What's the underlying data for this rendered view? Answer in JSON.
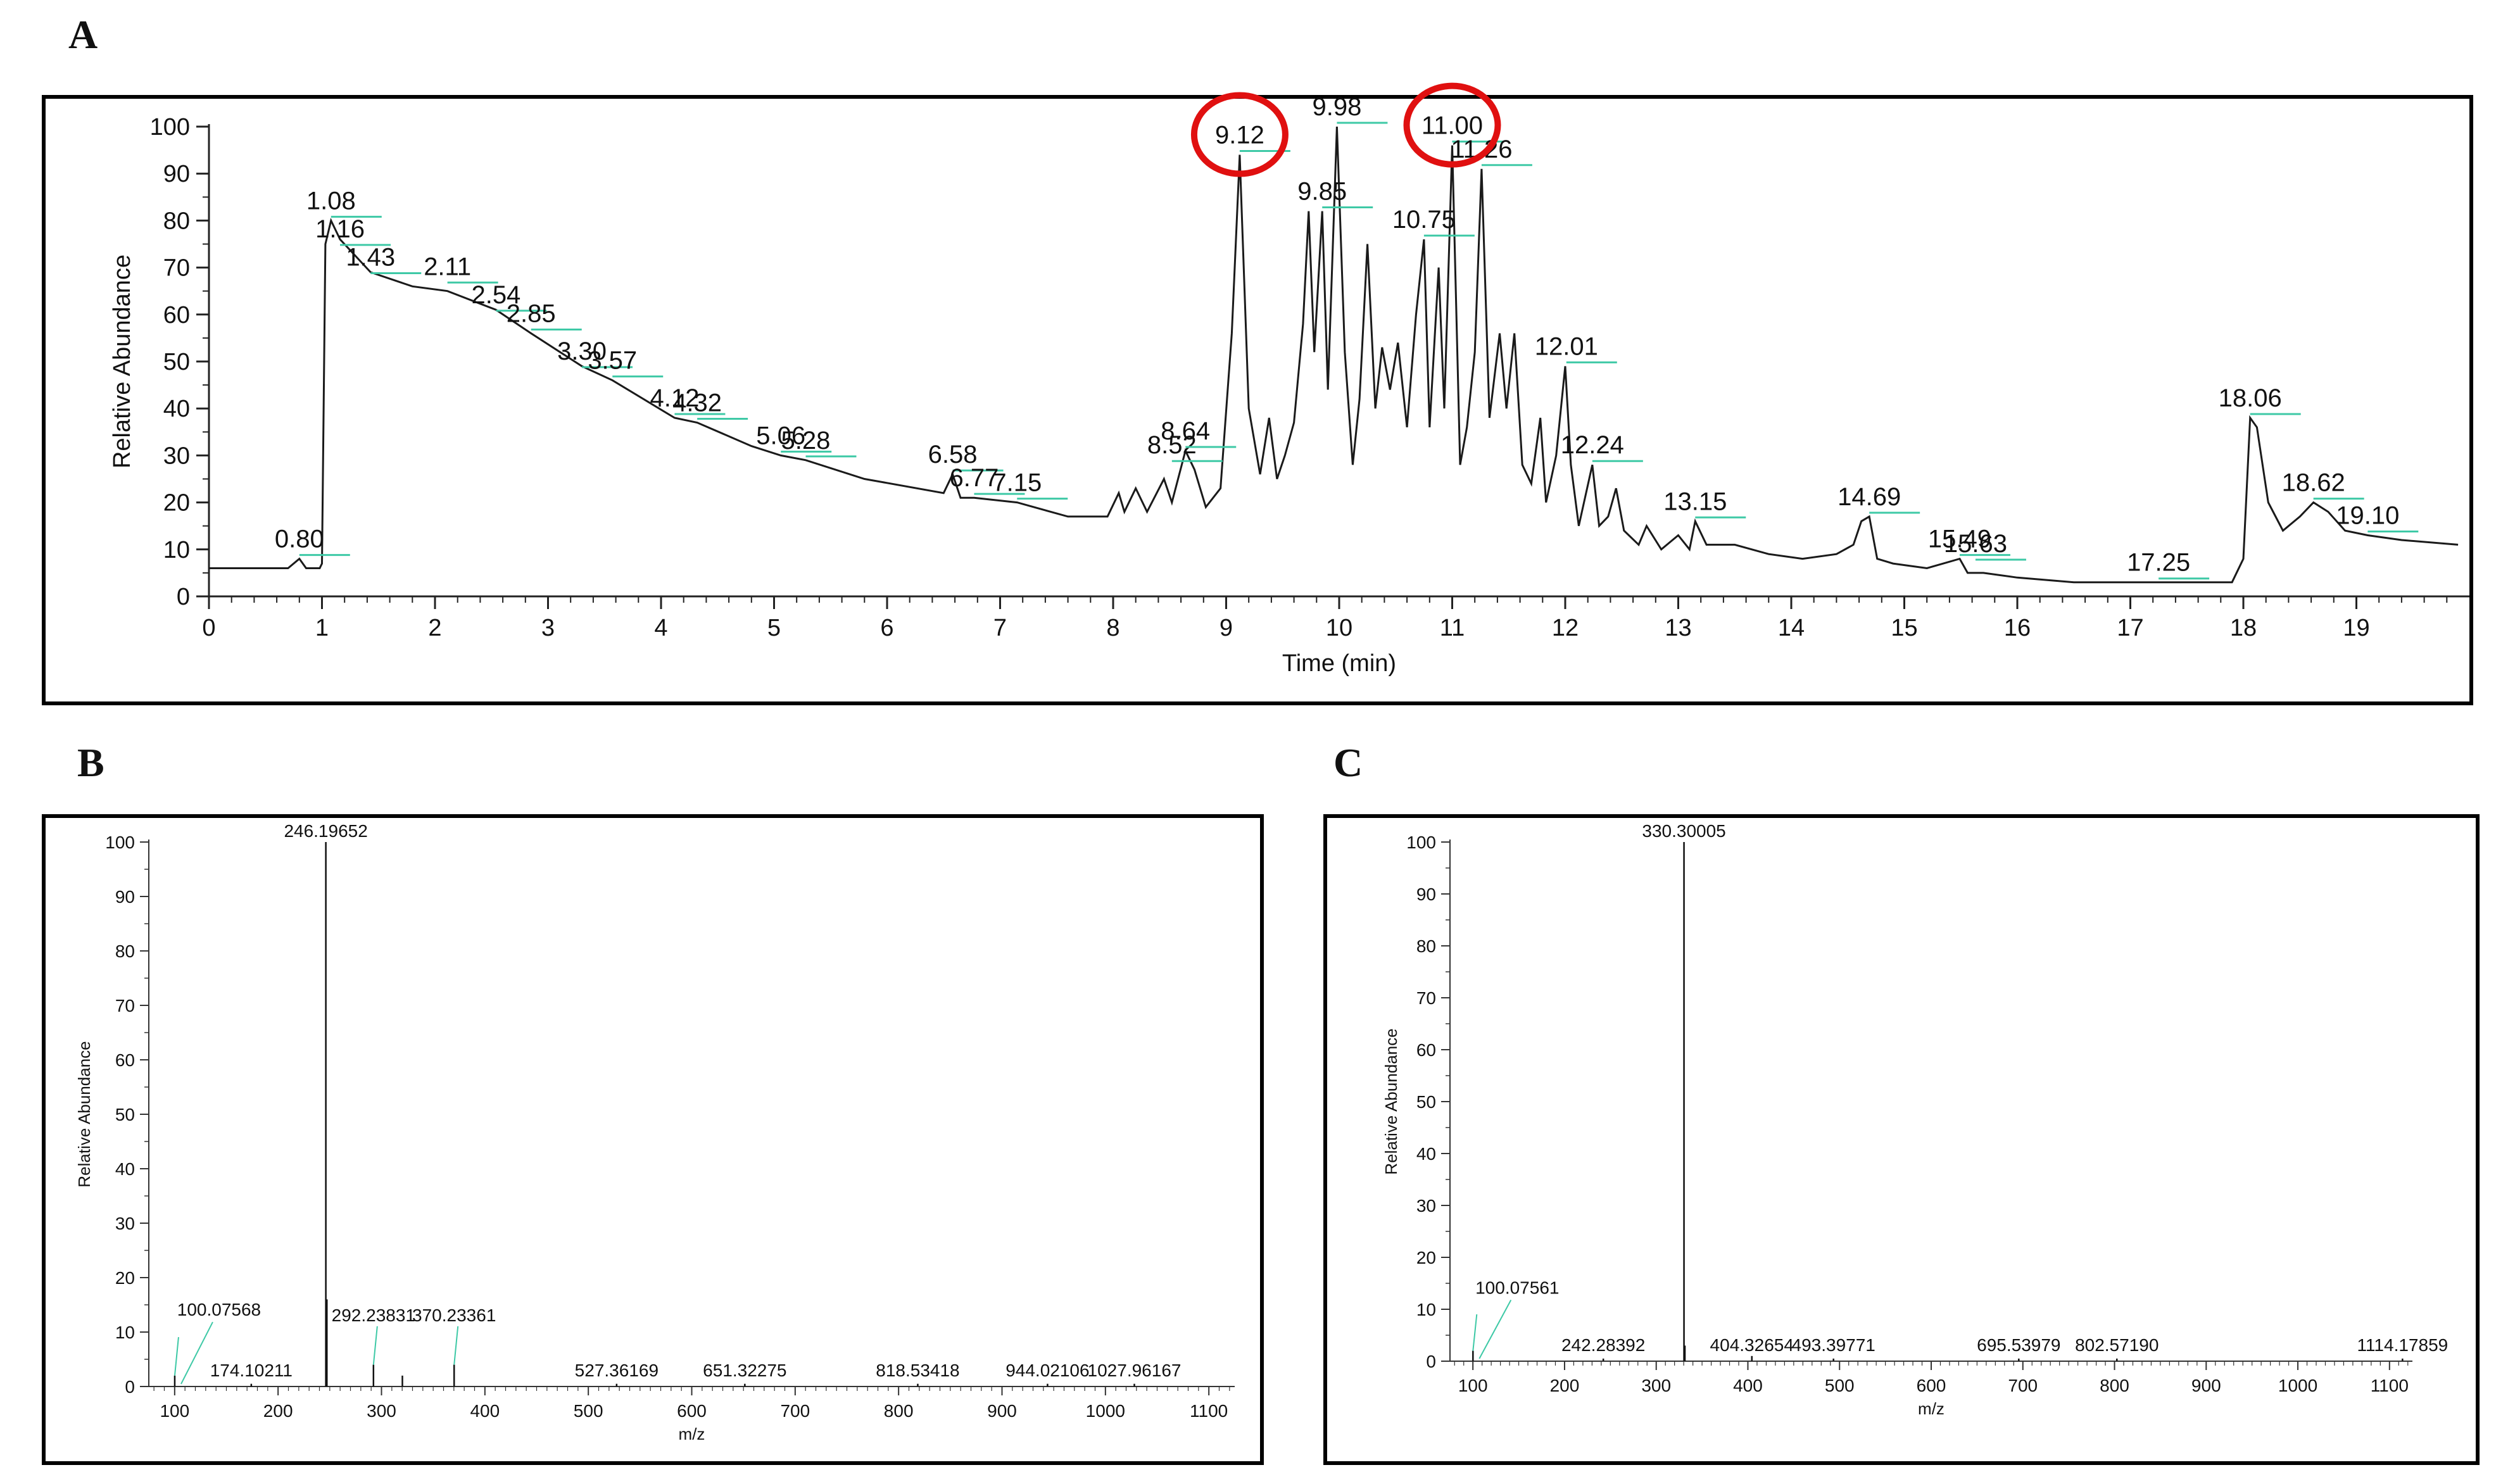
{
  "panels": {
    "a": "A",
    "b": "B",
    "c": "C"
  },
  "chart_data": [
    {
      "type": "line",
      "xlabel": "Time (min)",
      "ylabel": "Relative Abundance",
      "xlim": [
        0,
        20
      ],
      "ylim": [
        0,
        100
      ],
      "xticks": [
        0,
        1,
        2,
        3,
        4,
        5,
        6,
        7,
        8,
        9,
        10,
        11,
        12,
        13,
        14,
        15,
        16,
        17,
        18,
        19
      ],
      "yticks": [
        0,
        10,
        20,
        30,
        40,
        50,
        60,
        70,
        80,
        90,
        100
      ],
      "grid": false,
      "highlighted_peaks": [
        "9.12",
        "11.00"
      ],
      "highlight_color": "#e01010",
      "trace_color": "#1a1a1a",
      "label_line_color": "#3ec9a6",
      "peak_labels": [
        {
          "label": "0.80",
          "x": 0.8,
          "y": 8
        },
        {
          "label": "1.08",
          "x": 1.08,
          "y": 80
        },
        {
          "label": "1.16",
          "x": 1.16,
          "y": 74
        },
        {
          "label": "1.43",
          "x": 1.43,
          "y": 68
        },
        {
          "label": "2.11",
          "x": 2.11,
          "y": 66
        },
        {
          "label": "2.54",
          "x": 2.54,
          "y": 60
        },
        {
          "label": "2.85",
          "x": 2.85,
          "y": 56
        },
        {
          "label": "3.30",
          "x": 3.3,
          "y": 48
        },
        {
          "label": "3.57",
          "x": 3.57,
          "y": 46
        },
        {
          "label": "4.12",
          "x": 4.12,
          "y": 38
        },
        {
          "label": "4.32",
          "x": 4.32,
          "y": 37
        },
        {
          "label": "5.06",
          "x": 5.06,
          "y": 30
        },
        {
          "label": "5.28",
          "x": 5.28,
          "y": 29
        },
        {
          "label": "6.58",
          "x": 6.58,
          "y": 26
        },
        {
          "label": "6.77",
          "x": 6.77,
          "y": 21
        },
        {
          "label": "7.15",
          "x": 7.15,
          "y": 20
        },
        {
          "label": "8.52",
          "x": 8.52,
          "y": 28
        },
        {
          "label": "8.64",
          "x": 8.64,
          "y": 31
        },
        {
          "label": "9.12",
          "x": 9.12,
          "y": 94
        },
        {
          "label": "9.85",
          "x": 9.85,
          "y": 82
        },
        {
          "label": "9.98",
          "x": 9.98,
          "y": 100
        },
        {
          "label": "10.75",
          "x": 10.75,
          "y": 76
        },
        {
          "label": "11.00",
          "x": 11.0,
          "y": 96
        },
        {
          "label": "11.26",
          "x": 11.26,
          "y": 91
        },
        {
          "label": "12.01",
          "x": 12.01,
          "y": 49
        },
        {
          "label": "12.24",
          "x": 12.24,
          "y": 28
        },
        {
          "label": "13.15",
          "x": 13.15,
          "y": 16
        },
        {
          "label": "14.69",
          "x": 14.69,
          "y": 17
        },
        {
          "label": "15.49",
          "x": 15.49,
          "y": 8
        },
        {
          "label": "15.63",
          "x": 15.63,
          "y": 7
        },
        {
          "label": "17.25",
          "x": 17.25,
          "y": 3
        },
        {
          "label": "18.06",
          "x": 18.06,
          "y": 38
        },
        {
          "label": "18.62",
          "x": 18.62,
          "y": 20
        },
        {
          "label": "19.10",
          "x": 19.1,
          "y": 13
        }
      ],
      "trace": [
        [
          0.0,
          6
        ],
        [
          0.7,
          6
        ],
        [
          0.8,
          8
        ],
        [
          0.86,
          6
        ],
        [
          0.98,
          6
        ],
        [
          1.0,
          7
        ],
        [
          1.03,
          75
        ],
        [
          1.08,
          80
        ],
        [
          1.16,
          76
        ],
        [
          1.43,
          69
        ],
        [
          1.8,
          66
        ],
        [
          2.11,
          65
        ],
        [
          2.54,
          61
        ],
        [
          2.85,
          56
        ],
        [
          3.3,
          49
        ],
        [
          3.57,
          46
        ],
        [
          4.12,
          38
        ],
        [
          4.32,
          37
        ],
        [
          4.8,
          32
        ],
        [
          5.06,
          30
        ],
        [
          5.28,
          29
        ],
        [
          5.8,
          25
        ],
        [
          6.5,
          22
        ],
        [
          6.58,
          26
        ],
        [
          6.65,
          21
        ],
        [
          6.77,
          21
        ],
        [
          7.15,
          20
        ],
        [
          7.6,
          17
        ],
        [
          7.95,
          17
        ],
        [
          8.05,
          22
        ],
        [
          8.1,
          18
        ],
        [
          8.2,
          23
        ],
        [
          8.3,
          18
        ],
        [
          8.45,
          25
        ],
        [
          8.52,
          20
        ],
        [
          8.64,
          31
        ],
        [
          8.72,
          27
        ],
        [
          8.82,
          19
        ],
        [
          8.95,
          23
        ],
        [
          9.05,
          56
        ],
        [
          9.12,
          94
        ],
        [
          9.2,
          40
        ],
        [
          9.3,
          26
        ],
        [
          9.38,
          38
        ],
        [
          9.45,
          25
        ],
        [
          9.52,
          30
        ],
        [
          9.6,
          37
        ],
        [
          9.68,
          58
        ],
        [
          9.73,
          82
        ],
        [
          9.78,
          52
        ],
        [
          9.85,
          82
        ],
        [
          9.9,
          44
        ],
        [
          9.98,
          100
        ],
        [
          10.05,
          52
        ],
        [
          10.12,
          28
        ],
        [
          10.18,
          42
        ],
        [
          10.25,
          75
        ],
        [
          10.32,
          40
        ],
        [
          10.38,
          53
        ],
        [
          10.45,
          44
        ],
        [
          10.52,
          54
        ],
        [
          10.6,
          36
        ],
        [
          10.68,
          60
        ],
        [
          10.75,
          76
        ],
        [
          10.8,
          36
        ],
        [
          10.88,
          70
        ],
        [
          10.93,
          40
        ],
        [
          11.0,
          96
        ],
        [
          11.07,
          28
        ],
        [
          11.13,
          36
        ],
        [
          11.2,
          52
        ],
        [
          11.26,
          91
        ],
        [
          11.33,
          38
        ],
        [
          11.42,
          56
        ],
        [
          11.48,
          40
        ],
        [
          11.55,
          56
        ],
        [
          11.62,
          28
        ],
        [
          11.7,
          24
        ],
        [
          11.78,
          38
        ],
        [
          11.83,
          20
        ],
        [
          11.92,
          30
        ],
        [
          12.0,
          49
        ],
        [
          12.05,
          28
        ],
        [
          12.12,
          15
        ],
        [
          12.24,
          28
        ],
        [
          12.3,
          15
        ],
        [
          12.38,
          17
        ],
        [
          12.45,
          23
        ],
        [
          12.52,
          14
        ],
        [
          12.65,
          11
        ],
        [
          12.72,
          15
        ],
        [
          12.85,
          10
        ],
        [
          13.0,
          13
        ],
        [
          13.1,
          10
        ],
        [
          13.15,
          16
        ],
        [
          13.25,
          11
        ],
        [
          13.5,
          11
        ],
        [
          13.8,
          9
        ],
        [
          14.1,
          8
        ],
        [
          14.4,
          9
        ],
        [
          14.55,
          11
        ],
        [
          14.62,
          16
        ],
        [
          14.69,
          17
        ],
        [
          14.76,
          8
        ],
        [
          14.9,
          7
        ],
        [
          15.2,
          6
        ],
        [
          15.49,
          8
        ],
        [
          15.56,
          5
        ],
        [
          15.7,
          5
        ],
        [
          16.0,
          4
        ],
        [
          16.5,
          3
        ],
        [
          17.25,
          3
        ],
        [
          17.9,
          3
        ],
        [
          18.0,
          8
        ],
        [
          18.06,
          38
        ],
        [
          18.12,
          36
        ],
        [
          18.22,
          20
        ],
        [
          18.35,
          14
        ],
        [
          18.5,
          17
        ],
        [
          18.62,
          20
        ],
        [
          18.75,
          18
        ],
        [
          18.9,
          14
        ],
        [
          19.1,
          13
        ],
        [
          19.4,
          12
        ],
        [
          19.9,
          11
        ]
      ]
    },
    {
      "type": "bar",
      "xlabel": "m/z",
      "ylabel": "Relative Abundance",
      "xlim": [
        75,
        1125
      ],
      "ylim": [
        0,
        100
      ],
      "xticks": [
        100,
        200,
        300,
        400,
        500,
        600,
        700,
        800,
        900,
        1000,
        1100
      ],
      "yticks": [
        0,
        10,
        20,
        30,
        40,
        50,
        60,
        70,
        80,
        90,
        100
      ],
      "peaks": [
        {
          "mz": 100.07568,
          "intensity": 2,
          "label": "100.07568"
        },
        {
          "mz": 174.10211,
          "intensity": 0.5,
          "label": "174.10211"
        },
        {
          "mz": 246.19652,
          "intensity": 100,
          "label": "246.19652"
        },
        {
          "mz": 247.2,
          "intensity": 16
        },
        {
          "mz": 292.23831,
          "intensity": 4,
          "label": "292.23831"
        },
        {
          "mz": 320.2,
          "intensity": 2
        },
        {
          "mz": 370.23361,
          "intensity": 4,
          "label": "370.23361"
        },
        {
          "mz": 527.36169,
          "intensity": 0.5,
          "label": "527.36169"
        },
        {
          "mz": 651.32275,
          "intensity": 0.5,
          "label": "651.32275"
        },
        {
          "mz": 818.53418,
          "intensity": 0.5,
          "label": "818.53418"
        },
        {
          "mz": 944.02106,
          "intensity": 0.5,
          "label": "944.02106"
        },
        {
          "mz": 1027.96167,
          "intensity": 0.5,
          "label": "1027.96167"
        }
      ]
    },
    {
      "type": "bar",
      "xlabel": "m/z",
      "ylabel": "Relative Abundance",
      "xlim": [
        75,
        1125
      ],
      "ylim": [
        0,
        100
      ],
      "xticks": [
        100,
        200,
        300,
        400,
        500,
        600,
        700,
        800,
        900,
        1000,
        1100
      ],
      "yticks": [
        0,
        10,
        20,
        30,
        40,
        50,
        60,
        70,
        80,
        90,
        100
      ],
      "peaks": [
        {
          "mz": 100.07561,
          "intensity": 2,
          "label": "100.07561"
        },
        {
          "mz": 242.28392,
          "intensity": 0.5,
          "label": "242.28392"
        },
        {
          "mz": 330.30005,
          "intensity": 100,
          "label": "330.30005"
        },
        {
          "mz": 331.3,
          "intensity": 3
        },
        {
          "mz": 404.32654,
          "intensity": 1,
          "label": "404.32654"
        },
        {
          "mz": 493.39771,
          "intensity": 0.5,
          "label": "493.39771"
        },
        {
          "mz": 695.53979,
          "intensity": 0.5,
          "label": "695.53979"
        },
        {
          "mz": 802.5719,
          "intensity": 0.5,
          "label": "802.57190"
        },
        {
          "mz": 1114.17859,
          "intensity": 0.5,
          "label": "1114.17859"
        }
      ]
    }
  ]
}
